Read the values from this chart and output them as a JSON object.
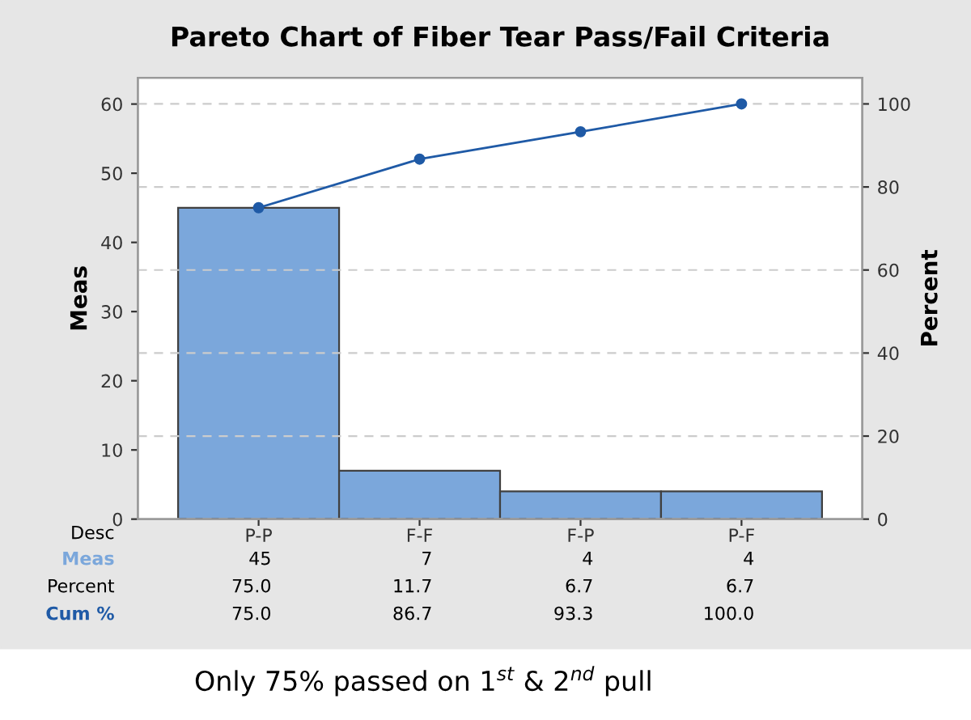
{
  "chart_data": {
    "type": "bar",
    "title": "Pareto Chart of Fiber Tear Pass/Fail Criteria",
    "xlabel": "Desc",
    "ylabel": "Meas",
    "y2label": "Percent",
    "categories": [
      "P-P",
      "F-F",
      "F-P",
      "P-F"
    ],
    "series": [
      {
        "name": "Meas",
        "color": "#7ba7db",
        "values": [
          45,
          7,
          4,
          4
        ],
        "value_labels": [
          "45",
          "7",
          "4",
          "4"
        ]
      },
      {
        "name": "Cum %",
        "type": "line",
        "axis": "y2",
        "color": "#1f5aa6",
        "marker": "circle",
        "values": [
          75.0,
          86.7,
          93.3,
          100.0
        ],
        "value_labels": [
          "75.0",
          "86.7",
          "93.3",
          "100.0"
        ]
      }
    ],
    "ylim": [
      0,
      63.8
    ],
    "yticks": [
      0,
      10,
      20,
      30,
      40,
      50,
      60
    ],
    "y2lim": [
      0,
      106.3
    ],
    "y2ticks": [
      0,
      20,
      40,
      60,
      80,
      100
    ],
    "grid": "y",
    "data_labels": true,
    "annotations": [
      "Percent",
      "75.0",
      "11.7",
      "6.7",
      "6.7",
      "Only 75% passed on 1$^{st}$ & 2$^{nd}$ pull"
    ]
  }
}
